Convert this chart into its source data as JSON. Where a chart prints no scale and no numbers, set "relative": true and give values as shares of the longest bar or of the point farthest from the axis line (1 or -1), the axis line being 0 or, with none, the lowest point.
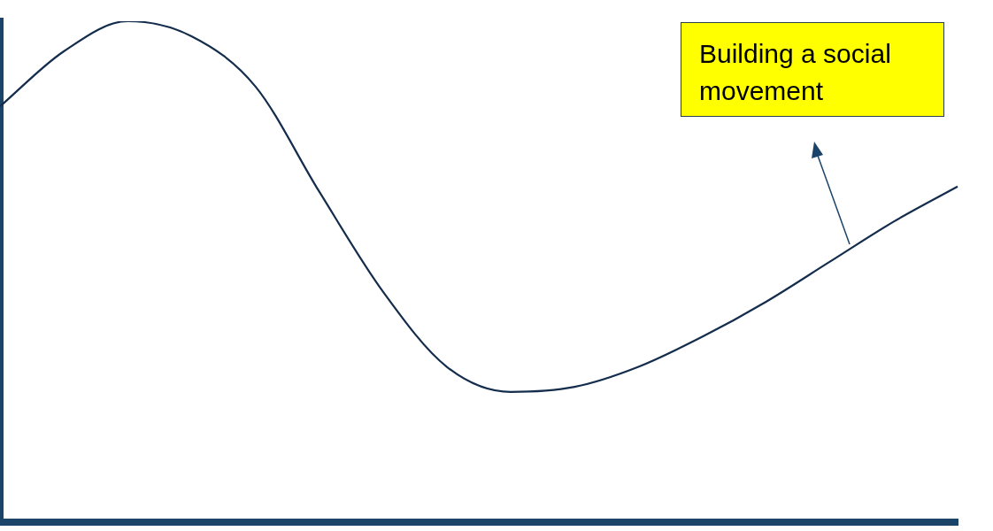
{
  "chart_data": {
    "type": "line",
    "relative": true,
    "categories": [
      null,
      null,
      null,
      null,
      null,
      null,
      null,
      null,
      null,
      null,
      null,
      null,
      null,
      null,
      null,
      null
    ],
    "series": [
      {
        "color": "#142d4c",
        "values": [
          0.83,
          0.94,
          1.0,
          0.97,
          0.87,
          0.66,
          0.46,
          0.31,
          0.26,
          0.27,
          0.31,
          0.37,
          0.44,
          0.52,
          0.6,
          0.67
        ]
      }
    ],
    "annotations": [
      "Building a social movement"
    ],
    "marker": "none",
    "grid": false,
    "legend": false
  }
}
